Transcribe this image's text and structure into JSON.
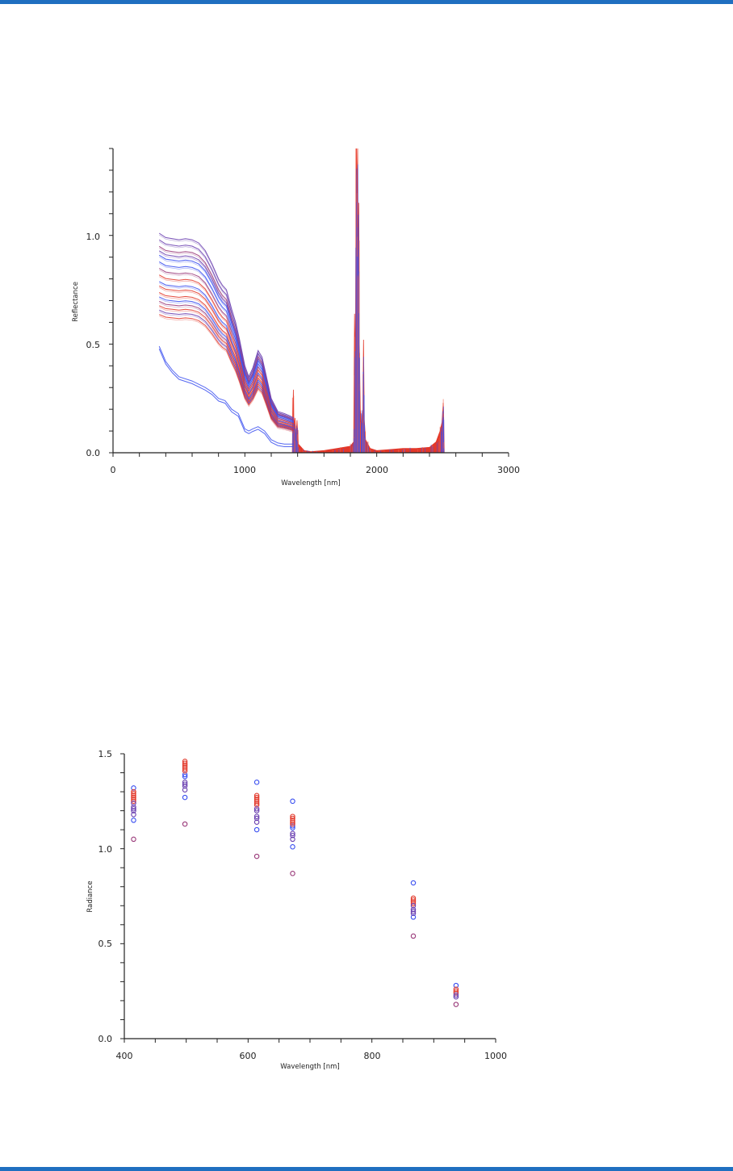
{
  "colors": {
    "page_rule": "#1f6fc0",
    "blue": "#3a4ff0",
    "red": "#e2382a",
    "purple": "#6a3fb0",
    "magenta": "#9a3a7a"
  },
  "chart_data": [
    {
      "type": "line",
      "title": "",
      "xlabel": "Wavelength [nm]",
      "ylabel": "Reflectance",
      "xlim": [
        0,
        3000
      ],
      "ylim": [
        0,
        1.4
      ],
      "xticks": [
        "0",
        "1000",
        "2000",
        "3000"
      ],
      "yticks": [
        "0.0",
        "0.5",
        "1.0"
      ],
      "grid": false,
      "base_x": [
        350,
        400,
        450,
        500,
        550,
        600,
        650,
        700,
        750,
        800,
        830,
        860,
        900,
        930,
        960,
        1000,
        1030,
        1060,
        1100,
        1130,
        1160,
        1200,
        1250,
        1300,
        1340,
        1370
      ],
      "base_y": [
        1.01,
        0.99,
        0.985,
        0.98,
        0.985,
        0.98,
        0.965,
        0.93,
        0.87,
        0.8,
        0.77,
        0.75,
        0.66,
        0.6,
        0.52,
        0.4,
        0.35,
        0.39,
        0.47,
        0.44,
        0.36,
        0.25,
        0.19,
        0.18,
        0.17,
        0.16
      ],
      "series": [
        {
          "name": "s1",
          "scale": 1.0,
          "color": "purple"
        },
        {
          "name": "s2",
          "scale": 0.97,
          "color": "purple"
        },
        {
          "name": "s3",
          "scale": 0.94,
          "color": "magenta"
        },
        {
          "name": "s4",
          "scale": 0.92,
          "color": "purple"
        },
        {
          "name": "s5",
          "scale": 0.9,
          "color": "blue"
        },
        {
          "name": "s6",
          "scale": 0.87,
          "color": "blue"
        },
        {
          "name": "s7",
          "scale": 0.84,
          "color": "magenta"
        },
        {
          "name": "s8",
          "scale": 0.81,
          "color": "red"
        },
        {
          "name": "s9",
          "scale": 0.78,
          "color": "blue"
        },
        {
          "name": "s10",
          "scale": 0.76,
          "color": "red"
        },
        {
          "name": "s11",
          "scale": 0.73,
          "color": "red"
        },
        {
          "name": "s12",
          "scale": 0.71,
          "color": "blue"
        },
        {
          "name": "s13",
          "scale": 0.69,
          "color": "magenta"
        },
        {
          "name": "s14",
          "scale": 0.67,
          "color": "red"
        },
        {
          "name": "s15",
          "scale": 0.65,
          "color": "purple"
        },
        {
          "name": "s16",
          "scale": 0.63,
          "color": "red"
        }
      ],
      "low_series": {
        "name": "s17",
        "color": "blue",
        "x": [
          350,
          400,
          450,
          500,
          600,
          700,
          750,
          800,
          850,
          900,
          950,
          1000,
          1030,
          1060,
          1100,
          1150,
          1200,
          1250,
          1300,
          1370
        ],
        "y": [
          0.49,
          0.42,
          0.38,
          0.35,
          0.33,
          0.3,
          0.28,
          0.25,
          0.24,
          0.2,
          0.18,
          0.11,
          0.1,
          0.11,
          0.12,
          0.1,
          0.06,
          0.045,
          0.04,
          0.04
        ]
      },
      "tail": {
        "color": "red",
        "x": [
          1360,
          1368,
          1372,
          1380,
          1388,
          1395,
          1405,
          1450,
          1500,
          1600,
          1700,
          1800,
          1825,
          1832,
          1838,
          1845,
          1850,
          1855,
          1860,
          1864,
          1868,
          1875,
          1885,
          1895,
          1900,
          1906,
          1915,
          1950,
          2000,
          2100,
          2200,
          2300,
          2400,
          2450,
          2480,
          2495,
          2505,
          2508,
          2512
        ],
        "y": [
          0.0,
          0.29,
          0.12,
          0.16,
          0.06,
          0.15,
          0.04,
          0.01,
          0.005,
          0.01,
          0.02,
          0.03,
          0.05,
          0.64,
          0.4,
          1.4,
          1.21,
          1.4,
          0.8,
          1.15,
          0.5,
          0.2,
          0.12,
          0.2,
          0.52,
          0.15,
          0.06,
          0.02,
          0.01,
          0.015,
          0.02,
          0.02,
          0.025,
          0.05,
          0.1,
          0.14,
          0.23,
          0.17,
          0.0
        ]
      }
    },
    {
      "type": "scatter",
      "title": "",
      "xlabel": "Wavelength [nm]",
      "ylabel": "Radiance",
      "xlim": [
        400,
        1000
      ],
      "ylim": [
        0,
        1.5
      ],
      "xticks": [
        "400",
        "600",
        "800",
        "1000"
      ],
      "yticks": [
        "0.0",
        "0.5",
        "1.0",
        "1.5"
      ],
      "grid": false,
      "series": [
        {
          "name": "blue",
          "color": "blue",
          "points": [
            [
              415,
              1.32
            ],
            [
              415,
              1.15
            ],
            [
              498,
              1.39
            ],
            [
              498,
              1.38
            ],
            [
              498,
              1.27
            ],
            [
              614,
              1.35
            ],
            [
              614,
              1.1
            ],
            [
              672,
              1.25
            ],
            [
              672,
              1.12
            ],
            [
              672,
              1.11
            ],
            [
              672,
              1.01
            ],
            [
              867,
              0.82
            ],
            [
              867,
              0.64
            ],
            [
              936,
              0.28
            ]
          ]
        },
        {
          "name": "red",
          "color": "red",
          "points": [
            [
              415,
              1.3
            ],
            [
              415,
              1.29
            ],
            [
              415,
              1.28
            ],
            [
              415,
              1.27
            ],
            [
              415,
              1.26
            ],
            [
              415,
              1.25
            ],
            [
              498,
              1.46
            ],
            [
              498,
              1.45
            ],
            [
              498,
              1.44
            ],
            [
              498,
              1.43
            ],
            [
              498,
              1.42
            ],
            [
              498,
              1.41
            ],
            [
              614,
              1.28
            ],
            [
              614,
              1.27
            ],
            [
              614,
              1.26
            ],
            [
              614,
              1.25
            ],
            [
              614,
              1.24
            ],
            [
              614,
              1.23
            ],
            [
              672,
              1.17
            ],
            [
              672,
              1.16
            ],
            [
              672,
              1.15
            ],
            [
              672,
              1.14
            ],
            [
              672,
              1.13
            ],
            [
              867,
              0.74
            ],
            [
              867,
              0.73
            ],
            [
              867,
              0.72
            ],
            [
              867,
              0.71
            ],
            [
              936,
              0.26
            ],
            [
              936,
              0.25
            ],
            [
              936,
              0.24
            ]
          ]
        },
        {
          "name": "purple",
          "color": "purple",
          "points": [
            [
              415,
              1.24
            ],
            [
              415,
              1.22
            ],
            [
              415,
              1.21
            ],
            [
              415,
              1.2
            ],
            [
              415,
              1.18
            ],
            [
              498,
              1.35
            ],
            [
              498,
              1.34
            ],
            [
              498,
              1.33
            ],
            [
              498,
              1.31
            ],
            [
              614,
              1.21
            ],
            [
              614,
              1.2
            ],
            [
              614,
              1.17
            ],
            [
              614,
              1.16
            ],
            [
              614,
              1.14
            ],
            [
              672,
              1.08
            ],
            [
              672,
              1.07
            ],
            [
              672,
              1.05
            ],
            [
              867,
              0.7
            ],
            [
              867,
              0.68
            ],
            [
              867,
              0.67
            ],
            [
              867,
              0.66
            ],
            [
              936,
              0.23
            ],
            [
              936,
              0.22
            ]
          ]
        },
        {
          "name": "magenta",
          "color": "magenta",
          "points": [
            [
              415,
              1.05
            ],
            [
              498,
              1.13
            ],
            [
              614,
              0.96
            ],
            [
              672,
              0.87
            ],
            [
              867,
              0.54
            ],
            [
              936,
              0.18
            ]
          ]
        }
      ]
    }
  ]
}
